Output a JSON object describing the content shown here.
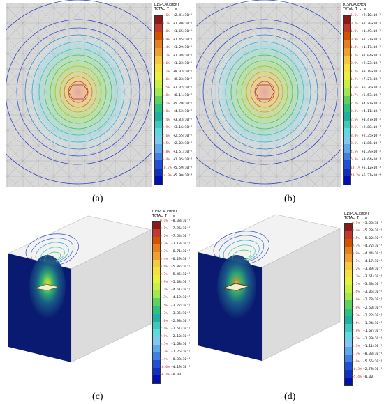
{
  "legend_title": "DISPLACEMENT",
  "legend_subtitle": "TOTAL T , m",
  "colors": [
    "#8b1a1a",
    "#c0392b",
    "#d35400",
    "#e67e22",
    "#f0a030",
    "#f5c842",
    "#f5e040",
    "#e8f040",
    "#c8f040",
    "#a0e850",
    "#60d060",
    "#30c080",
    "#20b0a0",
    "#40c8c0",
    "#60d8e0",
    "#80c8f0",
    "#60a8e8",
    "#4080e0",
    "#2050d8",
    "#1030c0",
    "#0010b0"
  ],
  "panels": [
    {
      "caption": "(a)",
      "legend": [
        {
          "pct": "1.6%",
          "val": "+2.41×10⁻¹"
        },
        {
          "pct": "0.7%",
          "val": "+1.80×10⁻¹"
        },
        {
          "pct": "1.0%",
          "val": "+1.65×10⁻¹"
        },
        {
          "pct": "0.9%",
          "val": "+1.45×10⁻¹"
        },
        {
          "pct": "1.4%",
          "val": "+1.29×10⁻¹"
        },
        {
          "pct": "1.7%",
          "val": "+1.08×10⁻¹"
        },
        {
          "pct": "0.6%",
          "val": "+1.02×10⁻¹"
        },
        {
          "pct": "1.1%",
          "val": "+9.03×10⁻²"
        },
        {
          "pct": "1.6%",
          "val": "+8.03×10⁻²"
        },
        {
          "pct": "1.5%",
          "val": "+7.02×10⁻²"
        },
        {
          "pct": "1.8%",
          "val": "+6.11×10⁻²"
        },
        {
          "pct": "2.1%",
          "val": "+5.29×10⁻²"
        },
        {
          "pct": "2.8%",
          "val": "+4.52×10⁻²"
        },
        {
          "pct": "2.4%",
          "val": "+3.83×10⁻²"
        },
        {
          "pct": "2.9%",
          "val": "+3.16×10⁻²"
        },
        {
          "pct": "2.6%",
          "val": "+2.55×10⁻²"
        },
        {
          "pct": "3.5%",
          "val": "+2.02×10⁻²"
        },
        {
          "pct": "3.8%",
          "val": "+1.51×10⁻²"
        },
        {
          "pct": "6.4%",
          "val": "+1.05×10⁻²"
        },
        {
          "pct": "10.7%",
          "val": "+5.59×10⁻³"
        },
        {
          "pct": "44.9%",
          "val": "+5.90×10⁻⁴"
        }
      ]
    },
    {
      "caption": "(b)",
      "legend": [
        {
          "pct": "1.6%",
          "val": "+2.10×10⁻¹"
        },
        {
          "pct": "0.7%",
          "val": "+1.70×10⁻¹"
        },
        {
          "pct": "1.0%",
          "val": "+1.49×10⁻¹"
        },
        {
          "pct": "0.9%",
          "val": "+1.31×10⁻¹"
        },
        {
          "pct": "1.4%",
          "val": "+1.17×10⁻¹"
        },
        {
          "pct": "1.7%",
          "val": "+1.04×10⁻¹"
        },
        {
          "pct": "0.9%",
          "val": "+9.23×10⁻²"
        },
        {
          "pct": "1.2%",
          "val": "+8.19×10⁻²"
        },
        {
          "pct": "1.2%",
          "val": "+7.27×10⁻²"
        },
        {
          "pct": "1.6%",
          "val": "+6.36×10⁻²"
        },
        {
          "pct": "1.7%",
          "val": "+5.53×10⁻²"
        },
        {
          "pct": "2.2%",
          "val": "+4.81×10⁻²"
        },
        {
          "pct": "2.3%",
          "val": "+4.11×10⁻²"
        },
        {
          "pct": "2.6%",
          "val": "+3.47×10⁻²"
        },
        {
          "pct": "2.6%",
          "val": "+2.88×10⁻²"
        },
        {
          "pct": "3.0%",
          "val": "+2.35×10⁻²"
        },
        {
          "pct": "3.6%",
          "val": "+1.86×10⁻²"
        },
        {
          "pct": "4.5%",
          "val": "+1.39×10⁻²"
        },
        {
          "pct": "6.3%",
          "val": "+9.64×10⁻³"
        },
        {
          "pct": "13.1%",
          "val": "+5.12×10⁻³"
        },
        {
          "pct": "43.2%",
          "val": "+6.21×10⁻⁴"
        }
      ]
    },
    {
      "caption": "(c)",
      "legend": [
        {
          "pct": "0.1%",
          "val": "+8.38×10⁻²"
        },
        {
          "pct": "0.1%",
          "val": "+7.96×10⁻²"
        },
        {
          "pct": "0.2%",
          "val": "+7.54×10⁻²"
        },
        {
          "pct": "0.3%",
          "val": "+7.13×10⁻²"
        },
        {
          "pct": "0.3%",
          "val": "+6.71×10⁻²"
        },
        {
          "pct": "0.4%",
          "val": "+6.29×10⁻²"
        },
        {
          "pct": "0.6%",
          "val": "+5.87×10⁻²"
        },
        {
          "pct": "0.7%",
          "val": "+5.45×10⁻²"
        },
        {
          "pct": "0.9%",
          "val": "+5.03×10⁻²"
        },
        {
          "pct": "1.1%",
          "val": "+4.61×10⁻²"
        },
        {
          "pct": "1.3%",
          "val": "+4.19×10⁻²"
        },
        {
          "pct": "1.5%",
          "val": "+3.77×10⁻²"
        },
        {
          "pct": "1.7%",
          "val": "+3.35×10⁻²"
        },
        {
          "pct": "2.0%",
          "val": "+2.93×10⁻²"
        },
        {
          "pct": "2.4%",
          "val": "+2.51×10⁻²"
        },
        {
          "pct": "2.9%",
          "val": "+2.10×10⁻²"
        },
        {
          "pct": "3.5%",
          "val": "+1.68×10⁻²"
        },
        {
          "pct": "4.3%",
          "val": "+1.26×10⁻²"
        },
        {
          "pct": "5.4%",
          "val": "+8.38×10⁻³"
        },
        {
          "pct": "10.0%",
          "val": "+4.19×10⁻³"
        },
        {
          "pct": "58.4%",
          "val": "+0.00"
        }
      ]
    },
    {
      "caption": "(d)",
      "legend": [
        {
          "pct": "0.1%",
          "val": "+5.55×10⁻²"
        },
        {
          "pct": "0.4%",
          "val": "+5.28×10⁻²"
        },
        {
          "pct": "0.5%",
          "val": "+5.00×10⁻²"
        },
        {
          "pct": "0.7%",
          "val": "+4.72×10⁻²"
        },
        {
          "pct": "0.9%",
          "val": "+4.44×10⁻²"
        },
        {
          "pct": "1.1%",
          "val": "+4.17×10⁻²"
        },
        {
          "pct": "1.2%",
          "val": "+3.89×10⁻²"
        },
        {
          "pct": "1.3%",
          "val": "+3.61×10⁻²"
        },
        {
          "pct": "1.5%",
          "val": "+3.33×10⁻²"
        },
        {
          "pct": "1.6%",
          "val": "+3.05×10⁻²"
        },
        {
          "pct": "1.8%",
          "val": "+2.78×10⁻²"
        },
        {
          "pct": "2.0%",
          "val": "+2.50×10⁻²"
        },
        {
          "pct": "2.2%",
          "val": "+2.22×10⁻²"
        },
        {
          "pct": "2.5%",
          "val": "+1.94×10⁻²"
        },
        {
          "pct": "2.8%",
          "val": "+1.67×10⁻²"
        },
        {
          "pct": "3.2%",
          "val": "+1.39×10⁻²"
        },
        {
          "pct": "3.7%",
          "val": "+1.11×10⁻²"
        },
        {
          "pct": "4.3%",
          "val": "+8.33×10⁻³"
        },
        {
          "pct": "6.0%",
          "val": "+5.55×10⁻³"
        },
        {
          "pct": "10.5%",
          "val": "+2.78×10⁻³"
        },
        {
          "pct": "55.4%",
          "val": "+0.00"
        }
      ]
    }
  ]
}
